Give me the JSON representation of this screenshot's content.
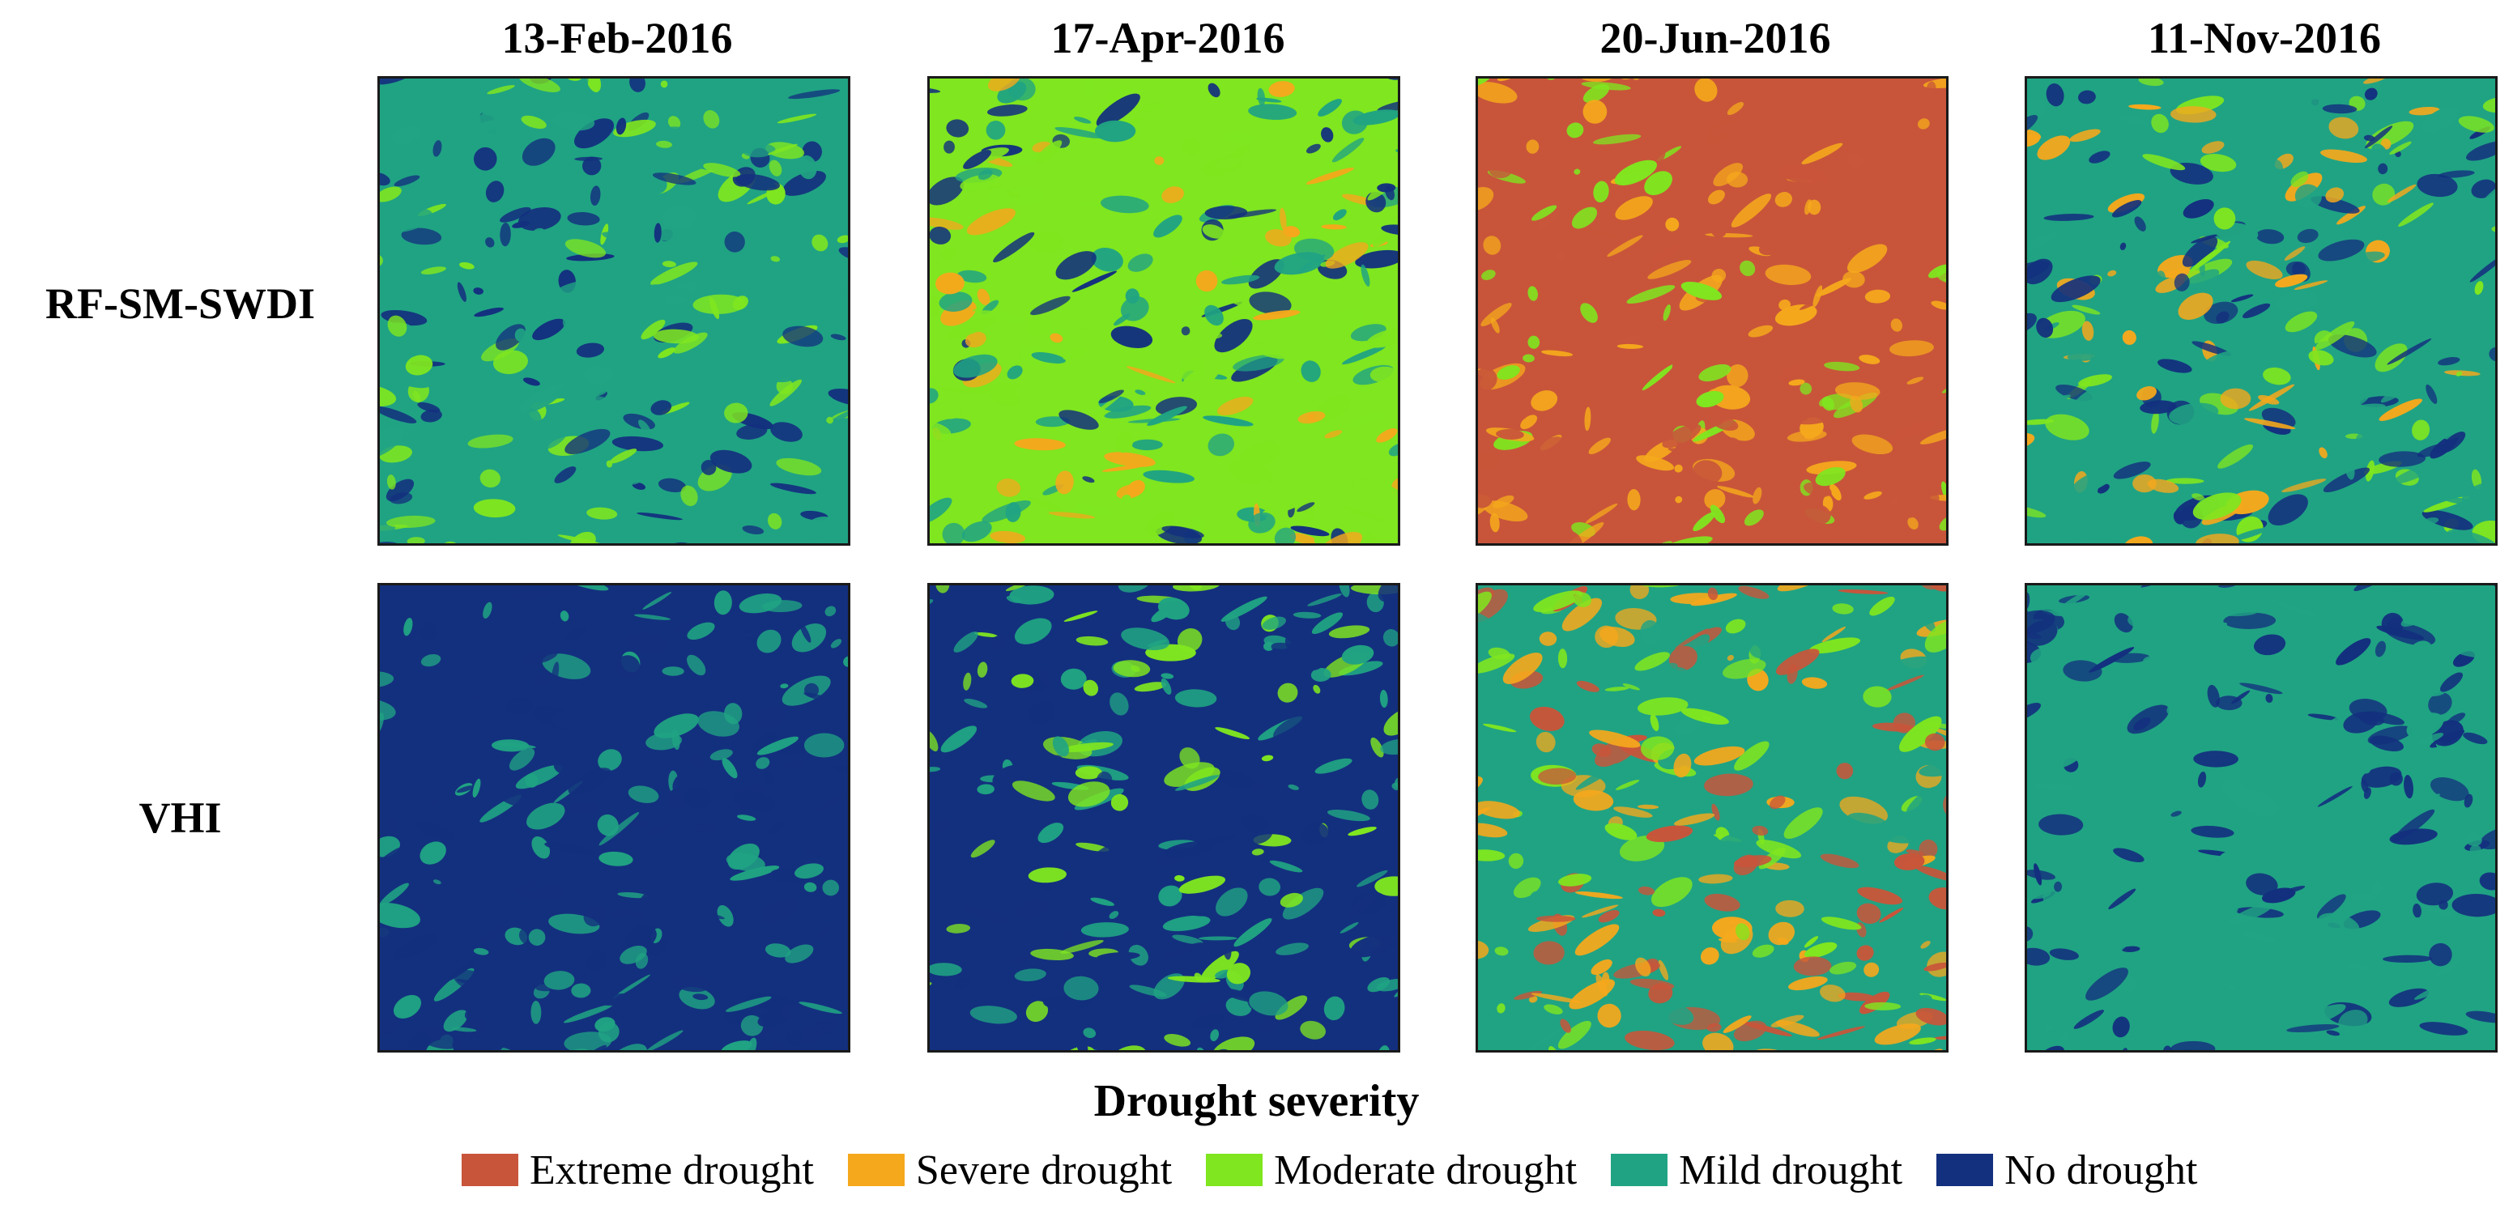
{
  "columns": [
    "13-Feb-2016",
    "17-Apr-2016",
    "20-Jun-2016",
    "11-Nov-2016"
  ],
  "rows": [
    "RF-SM-SWDI",
    "VHI"
  ],
  "legend": {
    "title": "Drought severity",
    "classes": [
      {
        "label": "Extreme drought",
        "color": "#c8553a"
      },
      {
        "label": "Severe drought",
        "color": "#f5a81c"
      },
      {
        "label": "Moderate drought",
        "color": "#7fe61f"
      },
      {
        "label": "Mild drought",
        "color": "#20a383"
      },
      {
        "label": "No drought",
        "color": "#13307e"
      }
    ]
  },
  "maps": [
    {
      "row": "RF-SM-SWDI",
      "date": "13-Feb-2016",
      "dominant": "Mild drought",
      "mix": [
        "Mild drought",
        "Moderate drought",
        "No drought"
      ]
    },
    {
      "row": "RF-SM-SWDI",
      "date": "17-Apr-2016",
      "dominant": "Moderate drought",
      "mix": [
        "Moderate drought",
        "Mild drought",
        "No drought",
        "Severe drought"
      ]
    },
    {
      "row": "RF-SM-SWDI",
      "date": "20-Jun-2016",
      "dominant": "Extreme drought",
      "mix": [
        "Extreme drought",
        "Severe drought",
        "Moderate drought"
      ]
    },
    {
      "row": "RF-SM-SWDI",
      "date": "11-Nov-2016",
      "dominant": "Mild drought",
      "mix": [
        "Mild drought",
        "No drought",
        "Moderate drought",
        "Severe drought"
      ]
    },
    {
      "row": "VHI",
      "date": "13-Feb-2016",
      "dominant": "No drought",
      "mix": [
        "No drought",
        "Mild drought"
      ]
    },
    {
      "row": "VHI",
      "date": "17-Apr-2016",
      "dominant": "No drought",
      "mix": [
        "No drought",
        "Mild drought",
        "Moderate drought"
      ]
    },
    {
      "row": "VHI",
      "date": "20-Jun-2016",
      "dominant": "Mild drought",
      "mix": [
        "Extreme drought",
        "Severe drought",
        "Moderate drought",
        "Mild drought"
      ]
    },
    {
      "row": "VHI",
      "date": "11-Nov-2016",
      "dominant": "Mild drought",
      "mix": [
        "Mild drought",
        "No drought"
      ]
    }
  ]
}
